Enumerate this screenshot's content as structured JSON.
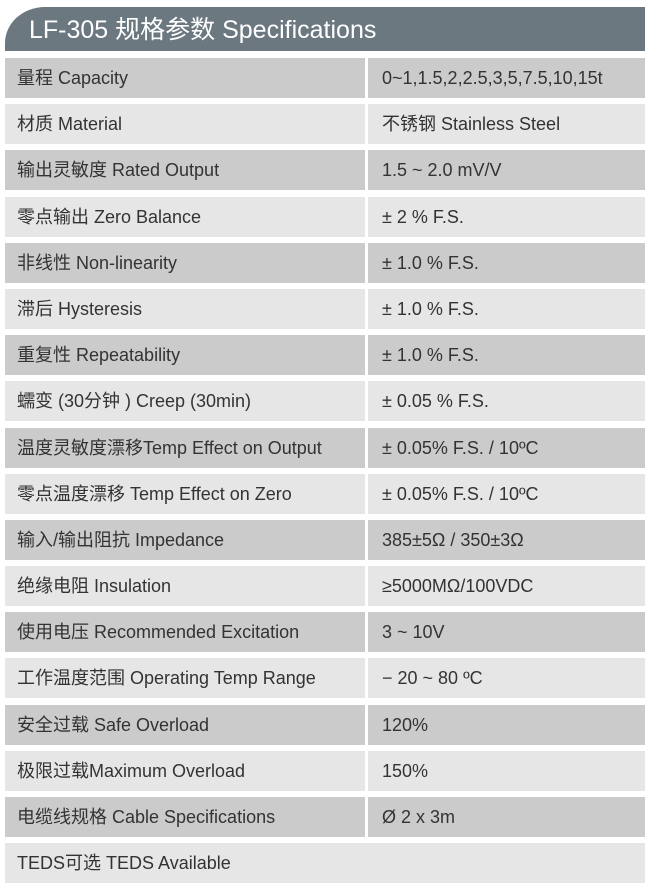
{
  "title": "LF-305 规格参数 Specifications",
  "specs": [
    {
      "label": "量程 Capacity",
      "value": "0~1,1.5,2,2.5,3,5,7.5,10,15t"
    },
    {
      "label": "材质 Material",
      "value": "不锈钢 Stainless Steel"
    },
    {
      "label": "输出灵敏度 Rated Output",
      "value": "1.5 ~ 2.0 mV/V"
    },
    {
      "label": "零点输出  Zero Balance",
      "value": "± 2 % F.S."
    },
    {
      "label": "非线性 Non-linearity",
      "value": "± 1.0 % F.S."
    },
    {
      "label": "滞后 Hysteresis",
      "value": "± 1.0 % F.S."
    },
    {
      "label": "重复性 Repeatability",
      "value": "± 1.0 % F.S."
    },
    {
      "label": "蠕变 (30分钟 ) Creep (30min)",
      "value": "± 0.05 % F.S."
    },
    {
      "label": "温度灵敏度漂移Temp Effect on Output",
      "value": "± 0.05% F.S. / 10ºC"
    },
    {
      "label": "零点温度漂移 Temp Effect on Zero",
      "value": "± 0.05% F.S. / 10ºC"
    },
    {
      "label": "输入/输出阻抗 Impedance",
      "value": "385±5Ω / 350±3Ω"
    },
    {
      "label": "绝缘电阻  Insulation",
      "value": "≥5000MΩ/100VDC"
    },
    {
      "label": "使用电压 Recommended Excitation",
      "value": "3 ~ 10V"
    },
    {
      "label": "工作温度范围 Operating Temp  Range",
      "value": "− 20 ~ 80 ºC"
    },
    {
      "label": "安全过载 Safe Overload",
      "value": "120%"
    },
    {
      "label": "极限过载Maximum Overload",
      "value": "150%"
    },
    {
      "label": "电缆线规格 Cable Specifications",
      "value": "Ø 2 x 3m"
    }
  ],
  "teds": "TEDS可选 TEDS Available"
}
